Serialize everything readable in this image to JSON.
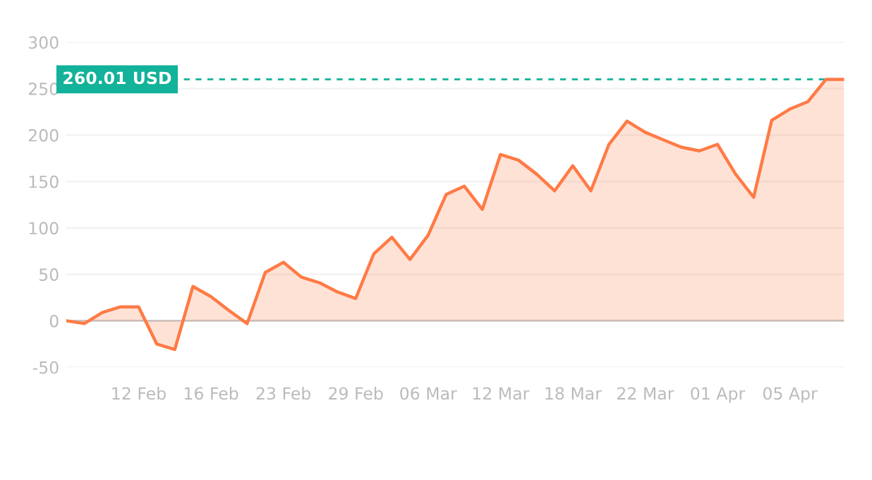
{
  "chart_data": {
    "type": "area",
    "categories": [
      null,
      null,
      null,
      null,
      "12 Feb",
      null,
      null,
      null,
      "16 Feb",
      null,
      null,
      null,
      "23 Feb",
      null,
      null,
      null,
      "29 Feb",
      null,
      null,
      null,
      "06 Mar",
      null,
      null,
      null,
      "12 Mar",
      null,
      null,
      null,
      "18 Mar",
      null,
      null,
      null,
      "22 Mar",
      null,
      null,
      null,
      "01 Apr",
      null,
      null,
      null,
      "05 Apr",
      null,
      null,
      null
    ],
    "series": [
      {
        "color": "#ff7a45",
        "values": [
          0,
          -3,
          9,
          15,
          15,
          -25,
          -31,
          37,
          26,
          11,
          -3,
          52,
          63,
          47,
          41,
          31,
          24,
          72,
          90,
          66,
          92,
          136,
          145,
          120,
          179,
          173,
          158,
          140,
          167,
          140,
          190,
          215,
          203,
          195,
          187,
          183,
          190,
          158,
          133,
          216,
          228,
          236,
          260,
          260.01
        ]
      }
    ],
    "ylim": [
      -50,
      300
    ],
    "yticks": [
      -50,
      0,
      50,
      100,
      150,
      200,
      250,
      300
    ],
    "grid": "y",
    "legend": false,
    "ref_lines": [
      {
        "axis": "y",
        "value": 260.01,
        "label": "260.01 USD",
        "color": "#13b29a",
        "line_style": "dashed"
      }
    ]
  }
}
